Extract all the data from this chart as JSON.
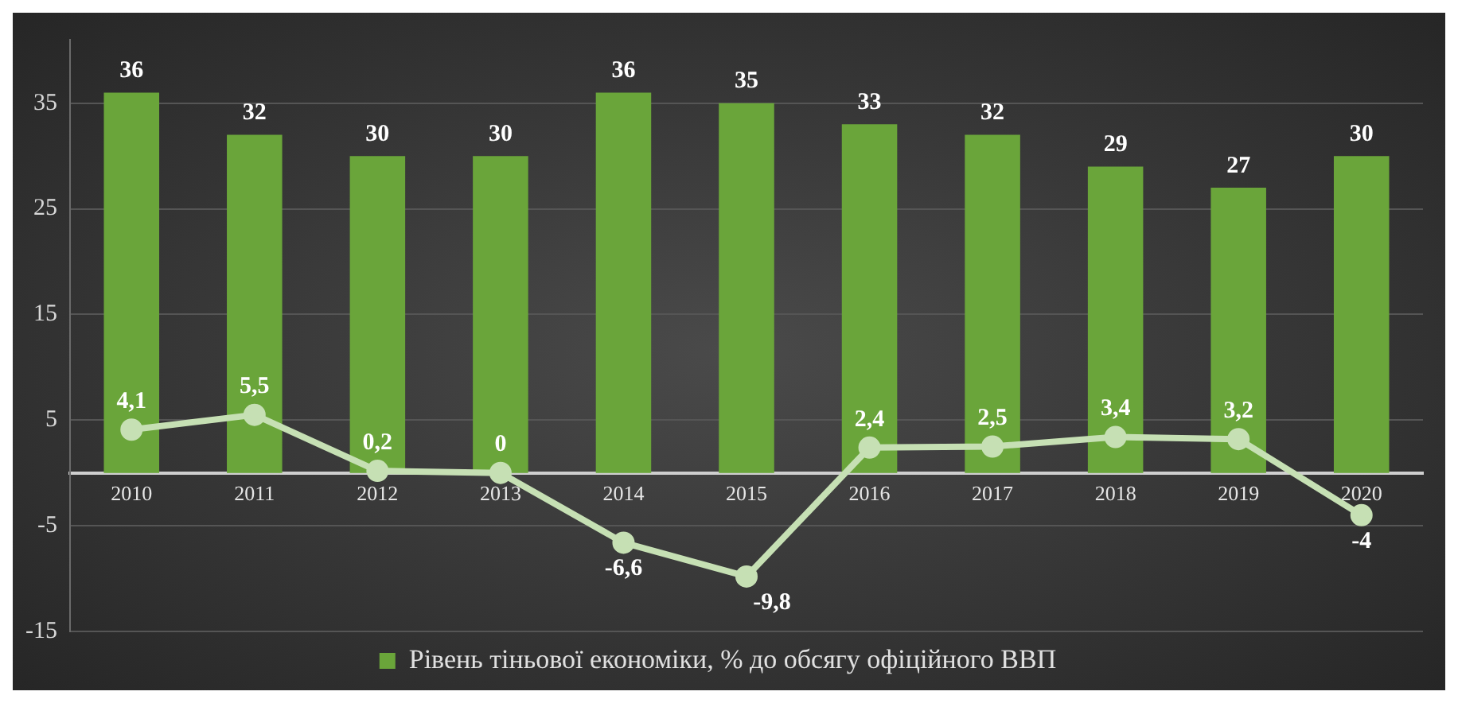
{
  "chart_data": {
    "type": "bar",
    "categories": [
      "2010",
      "2011",
      "2012",
      "2013",
      "2014",
      "2015",
      "2016",
      "2017",
      "2018",
      "2019",
      "2020"
    ],
    "series": [
      {
        "name": "Рівень тіньової економіки, % до обсягу офіційного ВВП",
        "color": "#6aa53a",
        "values": [
          36,
          32,
          30,
          30,
          36,
          35,
          33,
          32,
          29,
          27,
          30
        ]
      },
      {
        "type": "line",
        "color": "#c6e0b4",
        "values": [
          4.1,
          5.5,
          0.2,
          0,
          -6.6,
          -9.8,
          2.4,
          2.5,
          3.4,
          3.2,
          -4
        ],
        "value_labels": [
          "4,1",
          "5,5",
          "0,2",
          "0",
          "-6,6",
          "-9,8",
          "2,4",
          "2,5",
          "3,4",
          "3,2",
          "-4"
        ]
      }
    ],
    "data_labels": true,
    "ylim": [
      -15,
      41
    ],
    "yticks": [
      -15,
      -5,
      5,
      15,
      25,
      35
    ],
    "grid": "y",
    "legend": "bottom",
    "marker": "circle",
    "line_style": "solid"
  }
}
